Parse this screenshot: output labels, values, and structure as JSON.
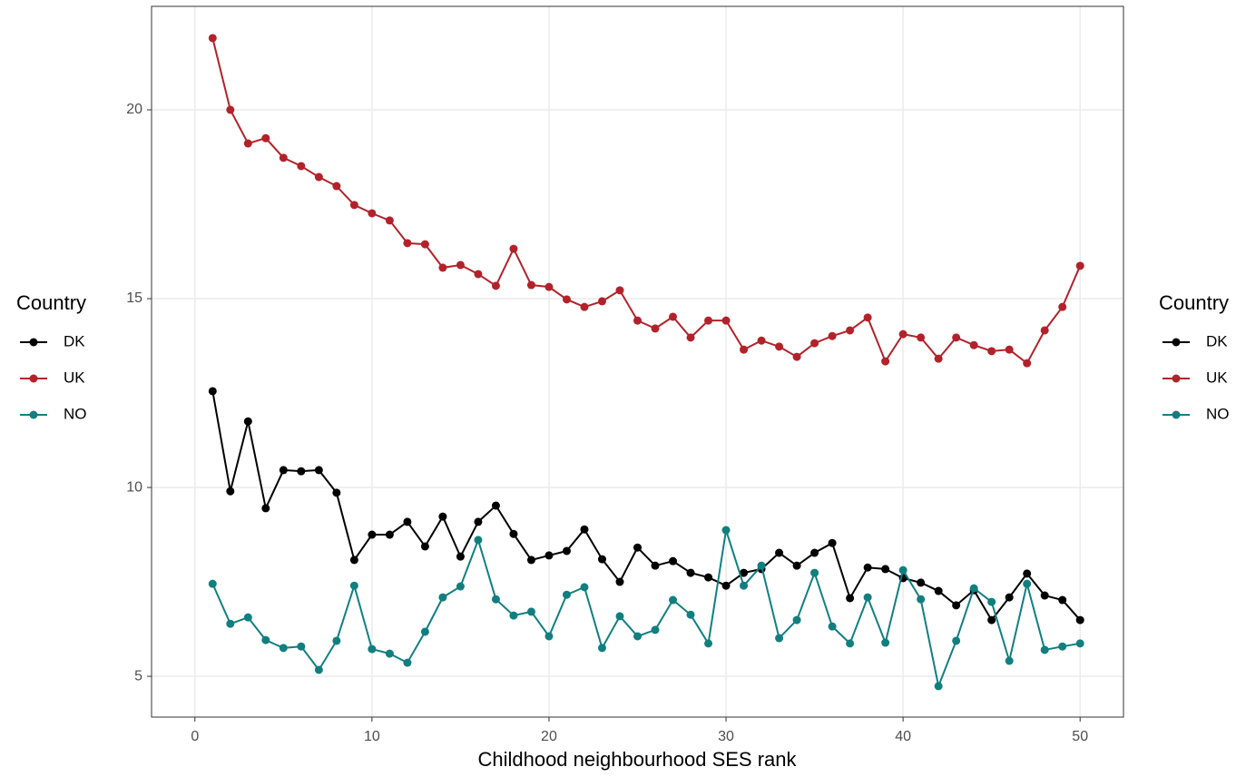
{
  "chart_data": {
    "type": "line",
    "xlabel": "Childhood neighbourhood SES rank",
    "legend_title": "Country",
    "legend_position": "both-sides",
    "grid": true,
    "xlim": [
      -2.45,
      52.45
    ],
    "xticks": [
      0,
      10,
      20,
      30,
      40,
      50
    ],
    "ylim": [
      3.92,
      22.74
    ],
    "yticks": [
      5,
      10,
      15,
      20
    ],
    "x": [
      1,
      2,
      3,
      4,
      5,
      6,
      7,
      8,
      9,
      10,
      11,
      12,
      13,
      14,
      15,
      16,
      17,
      18,
      19,
      20,
      21,
      22,
      23,
      24,
      25,
      26,
      27,
      28,
      29,
      30,
      31,
      32,
      33,
      34,
      35,
      36,
      37,
      38,
      39,
      40,
      41,
      42,
      43,
      44,
      45,
      46,
      47,
      48,
      49,
      50
    ],
    "series": [
      {
        "name": "DK",
        "color": "#000000",
        "values": [
          12.55,
          9.9,
          11.75,
          9.45,
          10.46,
          10.43,
          10.46,
          9.86,
          8.08,
          8.75,
          8.75,
          9.09,
          8.44,
          9.23,
          8.17,
          9.09,
          9.52,
          8.77,
          8.08,
          8.2,
          8.32,
          8.89,
          8.1,
          7.5,
          8.41,
          7.93,
          8.05,
          7.74,
          7.62,
          7.4,
          7.74,
          7.84,
          8.27,
          7.93,
          8.27,
          8.53,
          7.07,
          7.88,
          7.84,
          7.6,
          7.48,
          7.26,
          6.88,
          7.28,
          6.49,
          7.09,
          7.72,
          7.14,
          7.02,
          6.49
        ]
      },
      {
        "name": "UK",
        "color": "#b2222a",
        "values": [
          21.9,
          20.0,
          19.11,
          19.25,
          18.73,
          18.51,
          18.22,
          17.98,
          17.48,
          17.26,
          17.07,
          16.47,
          16.44,
          15.82,
          15.89,
          15.65,
          15.34,
          16.32,
          15.36,
          15.31,
          14.98,
          14.78,
          14.93,
          15.22,
          14.42,
          14.21,
          14.52,
          13.97,
          14.42,
          14.42,
          13.65,
          13.89,
          13.73,
          13.46,
          13.82,
          14.01,
          14.16,
          14.5,
          13.34,
          14.06,
          13.97,
          13.41,
          13.97,
          13.77,
          13.61,
          13.65,
          13.29,
          14.16,
          14.78,
          15.87
        ]
      },
      {
        "name": "NO",
        "color": "#117f80",
        "values": [
          7.45,
          6.39,
          6.56,
          5.96,
          5.75,
          5.79,
          5.17,
          5.94,
          7.4,
          5.72,
          5.6,
          5.36,
          6.18,
          7.09,
          7.38,
          8.61,
          7.04,
          6.61,
          6.71,
          6.06,
          7.16,
          7.36,
          5.75,
          6.59,
          6.06,
          6.23,
          7.02,
          6.63,
          5.87,
          8.87,
          7.4,
          7.93,
          6.01,
          6.49,
          7.74,
          6.32,
          5.87,
          7.09,
          5.89,
          7.81,
          7.04,
          4.74,
          5.94,
          7.33,
          6.97,
          5.41,
          7.45,
          5.7,
          5.79,
          5.87
        ]
      }
    ]
  }
}
